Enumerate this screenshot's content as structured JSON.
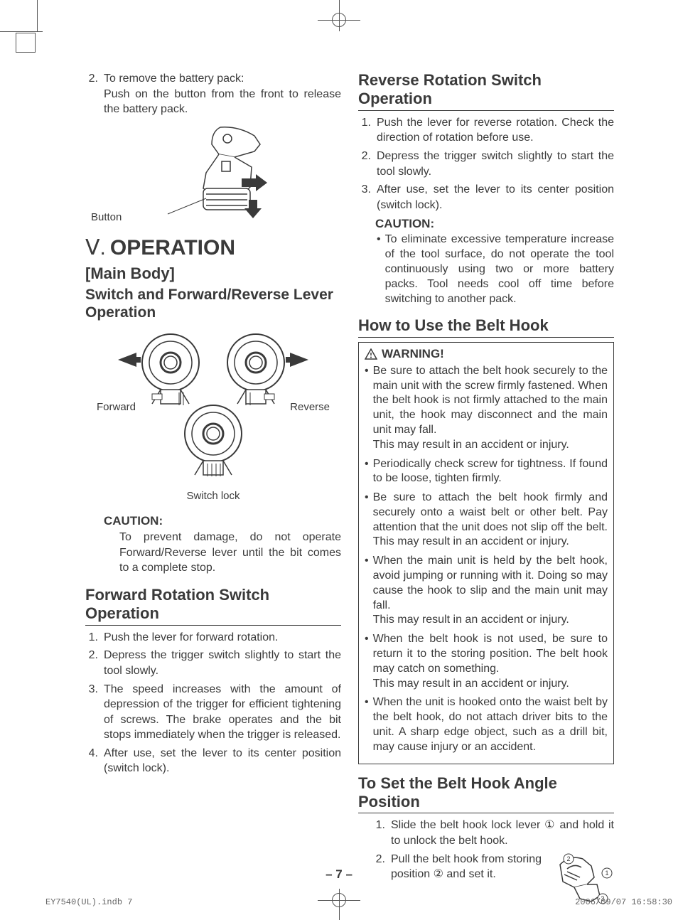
{
  "colors": {
    "text": "#3a3a3a",
    "line": "#555555",
    "background": "#ffffff"
  },
  "left": {
    "item2_num": "2.",
    "item2_lead": "To remove the battery pack:",
    "item2_body": "Push on the button from the front to re­lease the battery pack.",
    "button_label": "Button",
    "section_roman": "Ⅴ.",
    "section_title": "OPERATION",
    "main_body": "[Main Body]",
    "switch_heading": "Switch and Forward/Reverse Lever Operation",
    "forward_label": "Forward",
    "reverse_label": "Reverse",
    "switch_lock_label": "Switch lock",
    "caution_label": "CAUTION:",
    "caution_body": "To prevent damage, do not operate Forward/Reverse lever until the bit comes to a complete stop.",
    "fwd_heading": "Forward Rotation Switch Operation",
    "fwd_items": [
      {
        "n": "1.",
        "t": "Push the lever for forward rotation."
      },
      {
        "n": "2.",
        "t": "Depress the trigger switch slightly to start the tool slowly."
      },
      {
        "n": "3.",
        "t": "The speed increases with the amount of depression of the trigger for efficient tight­ening of screws. The brake operates and the bit stops immediately when the trigger is released."
      },
      {
        "n": "4.",
        "t": "After use, set the lever to its center posi­tion (switch lock)."
      }
    ]
  },
  "right": {
    "rev_heading": "Reverse Rotation Switch Operation",
    "rev_items": [
      {
        "n": "1.",
        "t": "Push the lever for reverse rotation. Check the direction of rotation before use."
      },
      {
        "n": "2.",
        "t": "Depress the trigger switch slightly to start the tool slowly."
      },
      {
        "n": "3.",
        "t": "After use, set the lever to its center posi­tion (switch lock)."
      }
    ],
    "caution_label": "CAUTION:",
    "caution_body": "To eliminate excessive temperature increase of the tool surface, do not operate the tool continuously using two or more battery packs. Tool needs cool off time before switching to another pack.",
    "belt_heading": "How to Use the Belt Hook",
    "warning_label": "WARNING!",
    "warning_items": [
      "Be sure to attach the belt hook securely to the main unit with the screw firmly fastened. When the belt hook is not firmly attached to the main unit, the hook may disconnect and the main unit may fall.\nThis may result in an accident or injury.",
      "Periodically check screw for tightness. If found to be loose, tighten firmly.",
      "Be sure to attach the belt hook firmly and securely onto a waist belt or other belt. Pay attention that the unit does not slip off the belt. This may result in an accident or injury.",
      "When the main unit is held by the belt hook, avoid jumping or running with it. Doing so may cause the hook to slip and the main unit may fall.\nThis may result in an accident or injury.",
      "When the belt hook is not used, be sure to return it to the storing position. The belt hook may catch on something.\nThis may result in an accident or injury.",
      "When the unit is hooked onto the waist belt by the belt hook, do not attach driver bits to the unit. A sharp edge object, such as a drill bit, may cause injury or an accident."
    ],
    "set_heading": "To Set the Belt Hook Angle Position",
    "set_item1_n": "1.",
    "set_item1_t": "Slide the belt hook lock lever ① and hold it to unlock the belt hook.",
    "set_item2_n": "2.",
    "set_item2_t": "Pull the belt hook from storing position ② and set it."
  },
  "page_number": "– 7 –",
  "footer_left": "EY7540(UL).indb   7",
  "footer_right": "2006/09/07   16:58:30"
}
